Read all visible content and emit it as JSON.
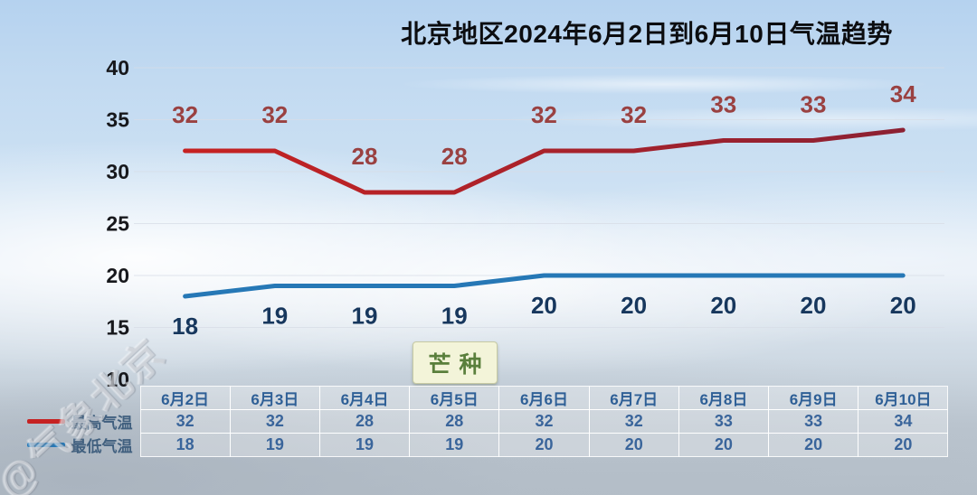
{
  "title": "北京地区2024年6月2日到6月10日气温趋势",
  "watermark": "@气象北京",
  "colors": {
    "max_line_start": "#c62222",
    "max_line_end": "#8c2133",
    "max_label": "#9a4141",
    "min_line": "#2678b6",
    "min_label": "#17375d",
    "axis_label": "#17181c",
    "gridline": "rgba(215,220,230,0.75)",
    "table_header_text": "#2e5f96",
    "table_value_text": "#3a659b",
    "legend_text": "#41607f",
    "annotation_text": "#5a7f3c",
    "annotation_bg": "#f3f4d9"
  },
  "chart_data": {
    "type": "line",
    "title": "北京地区2024年6月2日到6月10日气温趋势",
    "categories": [
      "6月2日",
      "6月3日",
      "6月4日",
      "6月5日",
      "6月6日",
      "6月7日",
      "6月8日",
      "6月9日",
      "6月10日"
    ],
    "series": [
      {
        "name": "最高气温",
        "values": [
          32,
          32,
          28,
          28,
          32,
          32,
          33,
          33,
          34
        ]
      },
      {
        "name": "最低气温",
        "values": [
          18,
          19,
          19,
          19,
          20,
          20,
          20,
          20,
          20
        ]
      }
    ],
    "ylim": [
      10,
      40
    ],
    "yticks": [
      40,
      35,
      30,
      25,
      20,
      15,
      10
    ],
    "grid": true,
    "legend_position": "table-left",
    "annotation": {
      "text": "芒种",
      "category": "6月5日",
      "category_index": 3
    }
  }
}
